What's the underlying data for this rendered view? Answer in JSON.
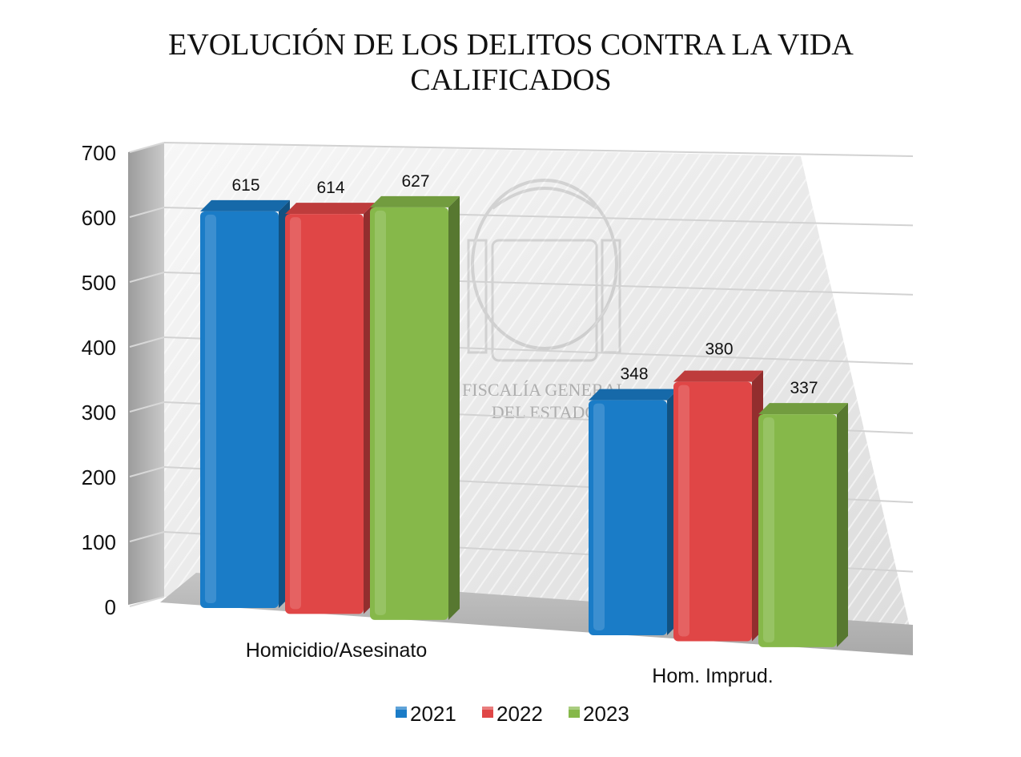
{
  "chart_data": {
    "type": "bar",
    "title_lines": [
      "EVOLUCIÓN DE LOS DELITOS CONTRA LA VIDA",
      "CALIFICADOS"
    ],
    "categories": [
      "Homicidio/Asesinato",
      "Hom. Imprud."
    ],
    "series": [
      {
        "name": "2021",
        "values": [
          615,
          348
        ],
        "color": "#1a7cc7"
      },
      {
        "name": "2022",
        "values": [
          614,
          380
        ],
        "color": "#e04646"
      },
      {
        "name": "2023",
        "values": [
          627,
          337
        ],
        "color": "#86b84a"
      }
    ],
    "ylim": [
      0,
      700
    ],
    "yticks": [
      0,
      100,
      200,
      300,
      400,
      500,
      600,
      700
    ],
    "grid": true,
    "legend": "bottom",
    "xlabel": "",
    "ylabel": "",
    "watermark_lines": [
      "FISCALÍA GENERAL",
      "DEL ESTADO"
    ]
  }
}
